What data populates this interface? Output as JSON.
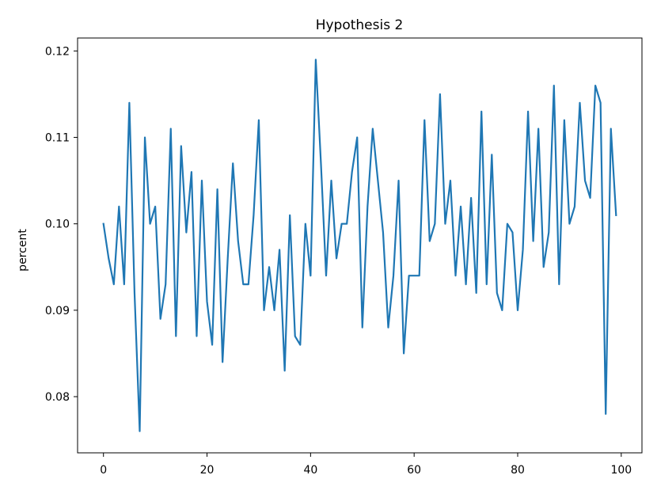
{
  "chart_data": {
    "type": "line",
    "title": "Hypothesis 2",
    "xlabel": "",
    "ylabel": "percent",
    "xlim": [
      -5,
      104
    ],
    "ylim": [
      0.0735,
      0.1215
    ],
    "xticks": [
      0,
      20,
      40,
      60,
      80,
      100
    ],
    "xtick_labels": [
      "0",
      "20",
      "40",
      "60",
      "80",
      "100"
    ],
    "yticks": [
      0.08,
      0.09,
      0.1,
      0.11,
      0.12
    ],
    "ytick_labels": [
      "0.08",
      "0.09",
      "0.10",
      "0.11",
      "0.12"
    ],
    "grid": false,
    "series": [
      {
        "color": "#1f77b4",
        "x": [
          0,
          1,
          2,
          3,
          4,
          5,
          6,
          7,
          8,
          9,
          10,
          11,
          12,
          13,
          14,
          15,
          16,
          17,
          18,
          19,
          20,
          21,
          22,
          23,
          24,
          25,
          26,
          27,
          28,
          29,
          30,
          31,
          32,
          33,
          34,
          35,
          36,
          37,
          38,
          39,
          40,
          41,
          42,
          43,
          44,
          45,
          46,
          47,
          48,
          49,
          50,
          51,
          52,
          53,
          54,
          55,
          56,
          57,
          58,
          59,
          60,
          61,
          62,
          63,
          64,
          65,
          66,
          67,
          68,
          69,
          70,
          71,
          72,
          73,
          74,
          75,
          76,
          77,
          78,
          79,
          80,
          81,
          82,
          83,
          84,
          85,
          86,
          87,
          88,
          89,
          90,
          91,
          92,
          93,
          94,
          95,
          96,
          97,
          98,
          99
        ],
        "y": [
          0.1,
          0.096,
          0.093,
          0.102,
          0.093,
          0.114,
          0.092,
          0.076,
          0.11,
          0.1,
          0.102,
          0.089,
          0.093,
          0.111,
          0.087,
          0.109,
          0.099,
          0.106,
          0.087,
          0.105,
          0.091,
          0.086,
          0.104,
          0.084,
          0.096,
          0.107,
          0.098,
          0.093,
          0.093,
          0.101,
          0.112,
          0.09,
          0.095,
          0.09,
          0.097,
          0.083,
          0.101,
          0.087,
          0.086,
          0.1,
          0.094,
          0.119,
          0.107,
          0.094,
          0.105,
          0.096,
          0.1,
          0.1,
          0.106,
          0.11,
          0.088,
          0.102,
          0.111,
          0.105,
          0.099,
          0.088,
          0.094,
          0.105,
          0.085,
          0.094,
          0.094,
          0.094,
          0.112,
          0.098,
          0.1,
          0.115,
          0.1,
          0.105,
          0.094,
          0.102,
          0.093,
          0.103,
          0.092,
          0.113,
          0.093,
          0.108,
          0.092,
          0.09,
          0.1,
          0.099,
          0.09,
          0.097,
          0.113,
          0.098,
          0.111,
          0.095,
          0.099,
          0.116,
          0.093,
          0.112,
          0.1,
          0.102,
          0.114,
          0.105,
          0.103,
          0.116,
          0.114,
          0.078,
          0.111,
          0.101
        ]
      }
    ]
  }
}
